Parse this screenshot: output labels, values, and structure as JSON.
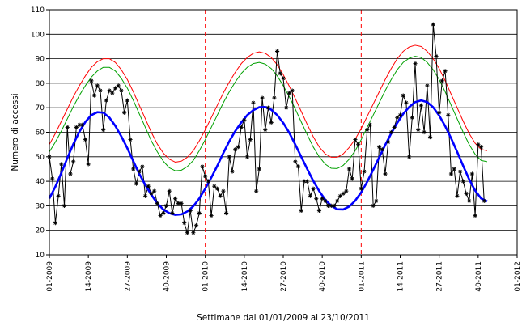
{
  "chart_data": {
    "type": "line",
    "title": "",
    "xlabel": "Settimane dal 01/01/2009 al 23/10/2011",
    "ylabel": "Numero di accessi",
    "ylim": [
      10,
      110
    ],
    "yticks": [
      10,
      20,
      30,
      40,
      50,
      60,
      70,
      80,
      90,
      100,
      110
    ],
    "xlim": [
      1,
      157
    ],
    "xticks": [
      {
        "x": 1,
        "label": "01-2009"
      },
      {
        "x": 14,
        "label": "14-2009"
      },
      {
        "x": 27,
        "label": "27-2009"
      },
      {
        "x": 40,
        "label": "40-2009"
      },
      {
        "x": 53,
        "label": "01-2010"
      },
      {
        "x": 66,
        "label": "14-2010"
      },
      {
        "x": 79,
        "label": "27-2010"
      },
      {
        "x": 92,
        "label": "40-2010"
      },
      {
        "x": 105,
        "label": "01-2011"
      },
      {
        "x": 118,
        "label": "14-2011"
      },
      {
        "x": 131,
        "label": "27-2011"
      },
      {
        "x": 144,
        "label": "40-2011"
      },
      {
        "x": 157,
        "label": "01-2012"
      }
    ],
    "grid": "horizontal",
    "year_separators": [
      53,
      105
    ],
    "series": [
      {
        "role": "observed",
        "color": "#000000",
        "marker": "asterisk",
        "x": [
          1,
          2,
          3,
          4,
          5,
          6,
          7,
          8,
          9,
          10,
          11,
          12,
          13,
          14,
          15,
          16,
          17,
          18,
          19,
          20,
          21,
          22,
          23,
          24,
          25,
          26,
          27,
          28,
          29,
          30,
          31,
          32,
          33,
          34,
          35,
          36,
          37,
          38,
          39,
          40,
          41,
          42,
          43,
          44,
          45,
          46,
          47,
          48,
          49,
          50,
          51,
          52,
          53,
          54,
          55,
          56,
          57,
          58,
          59,
          60,
          61,
          62,
          63,
          64,
          65,
          66,
          67,
          68,
          69,
          70,
          71,
          72,
          73,
          74,
          75,
          76,
          77,
          78,
          79,
          80,
          81,
          82,
          83,
          84,
          85,
          86,
          87,
          88,
          89,
          90,
          91,
          92,
          93,
          94,
          95,
          96,
          97,
          98,
          99,
          100,
          101,
          102,
          103,
          104,
          105,
          106,
          107,
          108,
          109,
          110,
          111,
          112,
          113,
          114,
          115,
          116,
          117,
          118,
          119,
          120,
          121,
          122,
          123,
          124,
          125,
          126,
          127,
          128,
          129,
          130,
          131,
          132,
          133,
          134,
          135,
          136,
          137,
          138,
          139,
          140,
          141,
          142,
          143,
          144,
          145,
          146
        ],
        "values": [
          50,
          41,
          23,
          34,
          47,
          30,
          62,
          43,
          48,
          62,
          63,
          63,
          57,
          47,
          81,
          75,
          79,
          77,
          61,
          73,
          77,
          76,
          78,
          79,
          77,
          68,
          73,
          57,
          45,
          39,
          44,
          46,
          34,
          38,
          35,
          36,
          31,
          26,
          27,
          30,
          36,
          27,
          33,
          31,
          31,
          23,
          19,
          28,
          19,
          22,
          27,
          46,
          42,
          40,
          26,
          38,
          37,
          34,
          36,
          27,
          50,
          44,
          53,
          54,
          62,
          65,
          50,
          57,
          72,
          36,
          45,
          74,
          61,
          70,
          64,
          74,
          93,
          84,
          82,
          70,
          76,
          77,
          48,
          46,
          28,
          40,
          40,
          34,
          37,
          33,
          28,
          33,
          32,
          30,
          30,
          30,
          32,
          34,
          35,
          36,
          45,
          41,
          57,
          55,
          37,
          44,
          61,
          63,
          30,
          32,
          54,
          53,
          43,
          56,
          60,
          62,
          66,
          67,
          75,
          72,
          50,
          66,
          88,
          61,
          71,
          60,
          79,
          58,
          104,
          91,
          68,
          81,
          85,
          67,
          43,
          45,
          34,
          44,
          40,
          35,
          32,
          43,
          26,
          55,
          54,
          32
        ]
      },
      {
        "role": "fitted",
        "color": "#0000ff",
        "x": [
          1,
          3,
          5,
          7,
          9,
          11,
          13,
          15,
          17,
          19,
          21,
          23,
          25,
          27,
          29,
          31,
          33,
          35,
          37,
          39,
          41,
          43,
          45,
          47,
          49,
          51,
          53,
          55,
          57,
          59,
          61,
          63,
          65,
          67,
          69,
          71,
          73,
          75,
          77,
          79,
          81,
          83,
          85,
          87,
          89,
          91,
          93,
          95,
          97,
          99,
          101,
          103,
          105,
          107,
          109,
          111,
          113,
          115,
          117,
          119,
          121,
          123,
          125,
          127,
          129,
          131,
          133,
          135,
          137,
          139,
          141,
          143,
          145,
          147
        ],
        "values": [
          33.0,
          37.8,
          43.4,
          49.5,
          55.2,
          60.2,
          64.2,
          67.0,
          68.2,
          68.0,
          66.0,
          62.6,
          58.3,
          53.5,
          48.2,
          43.0,
          38.5,
          34.5,
          31.0,
          28.5,
          27.0,
          26.3,
          26.5,
          27.7,
          29.8,
          33.0,
          37.0,
          41.5,
          46.3,
          51.5,
          56.3,
          60.5,
          64.0,
          67.0,
          69.0,
          70.2,
          70.3,
          69.2,
          67.0,
          63.8,
          59.8,
          55.0,
          50.0,
          45.0,
          40.2,
          36.0,
          32.5,
          30.0,
          28.6,
          28.5,
          29.7,
          32.1,
          35.5,
          39.8,
          44.7,
          49.8,
          54.8,
          59.5,
          63.8,
          67.5,
          70.3,
          72.3,
          73.0,
          72.3,
          70.2,
          66.8,
          62.5,
          57.5,
          52.0,
          46.3,
          40.8,
          36.2,
          33.0,
          31.8
        ]
      },
      {
        "role": "upper-band-green",
        "color": "#00a000",
        "x": [
          1,
          3,
          5,
          7,
          9,
          11,
          13,
          15,
          17,
          19,
          21,
          23,
          25,
          27,
          29,
          31,
          33,
          35,
          37,
          39,
          41,
          43,
          45,
          47,
          49,
          51,
          53,
          55,
          57,
          59,
          61,
          63,
          65,
          67,
          69,
          71,
          73,
          75,
          77,
          79,
          81,
          83,
          85,
          87,
          89,
          91,
          93,
          95,
          97,
          99,
          101,
          103,
          105,
          107,
          109,
          111,
          113,
          115,
          117,
          119,
          121,
          123,
          125,
          127,
          129,
          131,
          133,
          135,
          137,
          139,
          141,
          143,
          145,
          147
        ],
        "values": [
          52.0,
          56.0,
          60.5,
          65.5,
          70.5,
          75.0,
          79.0,
          82.5,
          85.0,
          86.5,
          86.5,
          85.0,
          82.0,
          78.0,
          73.0,
          67.5,
          62.0,
          56.5,
          52.0,
          48.2,
          45.5,
          44.3,
          44.5,
          46.0,
          48.5,
          52.5,
          57.0,
          62.0,
          67.0,
          72.0,
          76.5,
          80.5,
          84.0,
          86.5,
          88.0,
          88.5,
          87.8,
          86.0,
          83.0,
          79.0,
          74.5,
          69.5,
          64.2,
          59.0,
          54.0,
          50.0,
          47.0,
          45.3,
          45.2,
          46.5,
          49.0,
          52.5,
          57.0,
          62.0,
          67.0,
          72.0,
          77.0,
          81.5,
          85.5,
          88.5,
          90.2,
          91.0,
          90.5,
          88.5,
          85.5,
          81.5,
          76.5,
          71.0,
          65.5,
          60.0,
          55.0,
          51.0,
          48.5,
          48.0
        ]
      },
      {
        "role": "upper-band-red",
        "color": "#ff0000",
        "x": [
          1,
          3,
          5,
          7,
          9,
          11,
          13,
          15,
          17,
          19,
          21,
          23,
          25,
          27,
          29,
          31,
          33,
          35,
          37,
          39,
          41,
          43,
          45,
          47,
          49,
          51,
          53,
          55,
          57,
          59,
          61,
          63,
          65,
          67,
          69,
          71,
          73,
          75,
          77,
          79,
          81,
          83,
          85,
          87,
          89,
          91,
          93,
          95,
          97,
          99,
          101,
          103,
          105,
          107,
          109,
          111,
          113,
          115,
          117,
          119,
          121,
          123,
          125,
          127,
          129,
          131,
          133,
          135,
          137,
          139,
          141,
          143,
          145,
          147
        ],
        "values": [
          55.0,
          59.5,
          64.5,
          69.5,
          74.5,
          79.0,
          83.0,
          86.5,
          88.8,
          90.0,
          90.0,
          88.5,
          85.5,
          81.5,
          76.5,
          71.0,
          65.5,
          60.0,
          55.2,
          51.5,
          49.0,
          47.8,
          48.2,
          49.8,
          52.5,
          56.5,
          61.0,
          66.0,
          71.0,
          76.0,
          80.5,
          84.5,
          88.0,
          90.5,
          92.2,
          92.8,
          92.2,
          90.5,
          87.5,
          83.5,
          78.8,
          73.8,
          68.5,
          63.2,
          58.2,
          54.0,
          51.2,
          49.8,
          49.8,
          51.2,
          53.8,
          57.2,
          61.5,
          66.5,
          71.5,
          76.5,
          81.5,
          86.0,
          90.0,
          93.0,
          94.8,
          95.5,
          95.0,
          93.0,
          90.0,
          86.0,
          81.0,
          75.5,
          70.0,
          64.5,
          59.5,
          55.5,
          53.0,
          52.5
        ]
      }
    ]
  }
}
